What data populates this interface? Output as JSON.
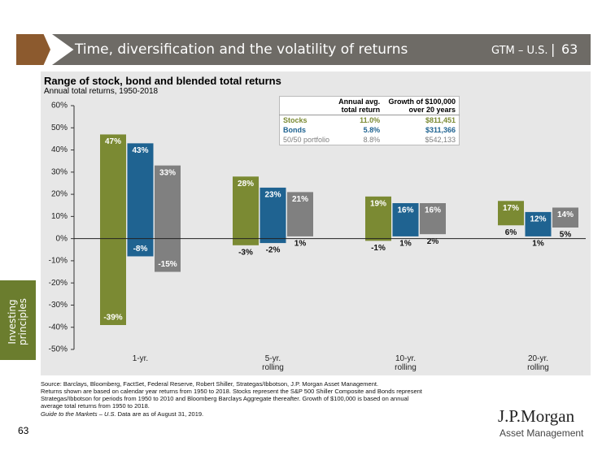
{
  "header": {
    "title": "Time, diversification and the volatility of returns",
    "section": "GTM – U.S.",
    "separator": "|",
    "page": "63"
  },
  "sidebar": "Investing principles",
  "chart_data": {
    "type": "range-bar",
    "title": "Range of stock, bond and blended total returns",
    "subtitle": "Annual total returns, 1950-2018",
    "categories": [
      "1-yr.",
      "5-yr.\nrolling",
      "10-yr.\nrolling",
      "20-yr.\nrolling"
    ],
    "series": [
      {
        "name": "Stocks",
        "color": "#7b8a33",
        "annual_return": "11.0%",
        "growth": "$811,451",
        "values": [
          [
            -39,
            47
          ],
          [
            -3,
            28
          ],
          [
            -1,
            19
          ],
          [
            6,
            17
          ]
        ],
        "value_labels": [
          [
            "-39%",
            "47%"
          ],
          [
            "-3%",
            "28%"
          ],
          [
            "-1%",
            "19%"
          ],
          [
            "6%",
            "17%"
          ]
        ]
      },
      {
        "name": "Bonds",
        "color": "#1f6391",
        "annual_return": "5.8%",
        "growth": "$311,366",
        "values": [
          [
            -8,
            43
          ],
          [
            -2,
            23
          ],
          [
            1,
            16
          ],
          [
            1,
            12
          ]
        ],
        "value_labels": [
          [
            "-8%",
            "43%"
          ],
          [
            "-2%",
            "23%"
          ],
          [
            "1%",
            "16%"
          ],
          [
            "1%",
            "12%"
          ]
        ]
      },
      {
        "name": "50/50 portfolio",
        "color": "#808080",
        "annual_return": "8.8%",
        "growth": "$542,133",
        "values": [
          [
            -15,
            33
          ],
          [
            1,
            21
          ],
          [
            2,
            16
          ],
          [
            5,
            14
          ]
        ],
        "value_labels": [
          [
            "-15%",
            "33%"
          ],
          [
            "1%",
            "21%"
          ],
          [
            "2%",
            "16%"
          ],
          [
            "5%",
            "14%"
          ]
        ]
      }
    ],
    "table_header": [
      "Annual avg.\ntotal return",
      "Growth of $100,000\nover 20 years"
    ],
    "ylim": [
      -50,
      60
    ],
    "yticks": [
      {
        "value": 60,
        "label": "60%"
      },
      {
        "value": 50,
        "label": "50%"
      },
      {
        "value": 40,
        "label": "40%"
      },
      {
        "value": 30,
        "label": "30%"
      },
      {
        "value": 20,
        "label": "20%"
      },
      {
        "value": 10,
        "label": "10%"
      },
      {
        "value": 0,
        "label": "0%"
      },
      {
        "value": -10,
        "label": "-10%"
      },
      {
        "value": -20,
        "label": "-20%"
      },
      {
        "value": -30,
        "label": "-30%"
      },
      {
        "value": -40,
        "label": "-40%"
      },
      {
        "value": -50,
        "label": "-50%"
      }
    ],
    "grid": false
  },
  "footer": {
    "source": "Source: Barclays, Bloomberg, FactSet, Federal Reserve, Robert Shiller, Strategas/Ibbotson, J.P. Morgan Asset Management.",
    "notes": "Returns shown are based on calendar year returns from 1950 to 2018. Stocks represent the S&P 500 Shiller Composite and Bonds represent Strategas/Ibbotson for periods from 1950 to 2010 and Bloomberg Barclays Aggregate thereafter. Growth of $100,000 is based on annual average total returns from 1950 to 2018.",
    "guide": "Guide to the Markets – U.S.",
    "date_note": "Data are as of August 31, 2019."
  },
  "page_number": "63",
  "logo": {
    "brand": "J.P.Morgan",
    "division": "Asset Management"
  }
}
